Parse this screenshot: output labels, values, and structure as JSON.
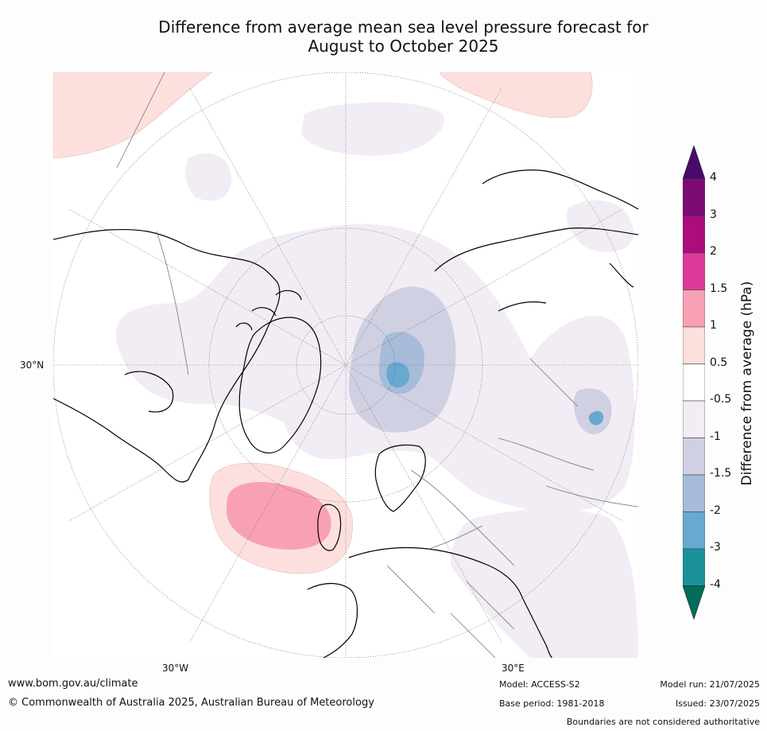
{
  "title_line1": "Difference from average mean sea level pressure forecast for",
  "title_line2": "August to October 2025",
  "lat_label": "30°N",
  "lon_label_left": "30°W",
  "lon_label_right": "30°E",
  "colorbar": {
    "title": "Difference from average (hPa)",
    "ticks": [
      "4",
      "3",
      "2",
      "1.5",
      "1",
      "0.5",
      "-0.5",
      "-1",
      "-1.5",
      "-2",
      "-3",
      "-4"
    ],
    "bands": [
      {
        "range": "3 to 4",
        "color": "#7b0a74"
      },
      {
        "range": "2 to 3",
        "color": "#ad0c7c"
      },
      {
        "range": "1.5 to 2",
        "color": "#dc3a9a"
      },
      {
        "range": "1 to 1.5",
        "color": "#f8a1b6"
      },
      {
        "range": "0.5 to 1",
        "color": "#fde0de"
      },
      {
        "range": "-0.5 to 0.5",
        "color": "#ffffff"
      },
      {
        "range": "-1 to -0.5",
        "color": "#f2ecf4"
      },
      {
        "range": "-1.5 to -1",
        "color": "#d0d0e3"
      },
      {
        "range": "-2 to -1.5",
        "color": "#a6bcd9"
      },
      {
        "range": "-3 to -2",
        "color": "#67a9cf"
      },
      {
        "range": "-4 to -3",
        "color": "#1b929a"
      }
    ],
    "over_color": "#4a0a6b",
    "under_color": "#016c59"
  },
  "footer": {
    "website": "www.bom.gov.au/climate",
    "copyright": "© Commonwealth of Australia 2025, Australian Bureau of Meteorology",
    "model": "Model: ACCESS-S2",
    "base_period": "Base period: 1981-2018",
    "model_run": "Model run: 21/07/2025",
    "issued": "Issued: 23/07/2025",
    "boundaries_note": "Boundaries are not considered authoritative"
  }
}
